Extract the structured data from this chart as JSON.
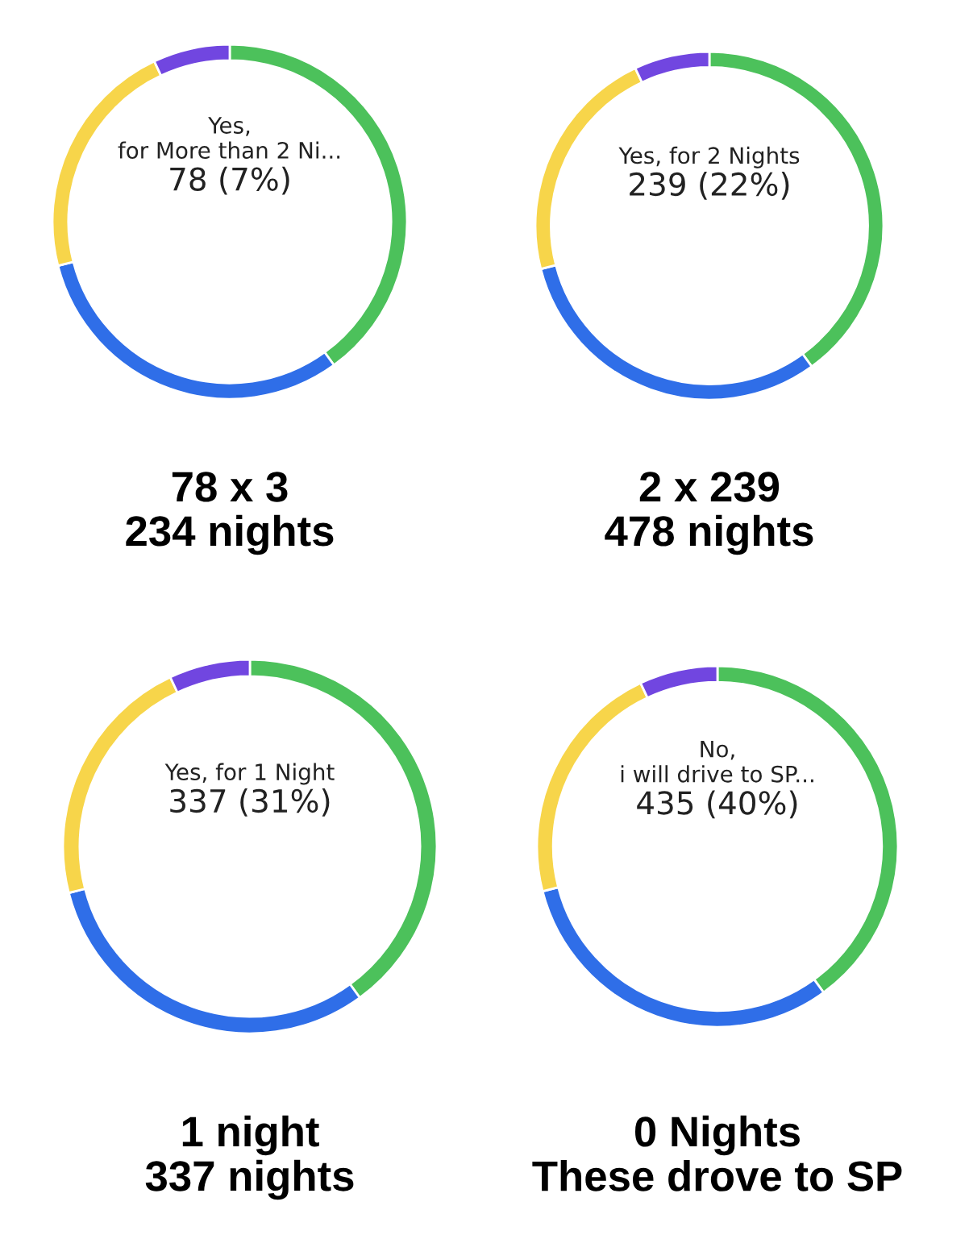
{
  "chart_data": [
    {
      "type": "donut",
      "title": "78 x 3\n234 nights",
      "categories": [
        null,
        null,
        null,
        null
      ],
      "values": [
        40,
        31,
        22,
        7
      ],
      "colors": [
        "#4cc15b",
        "#2f6ee8",
        "#f7d54a",
        "#7146e0"
      ],
      "annotations": [
        "Yes,\nfor More than 2 Ni...",
        "78 (7%)"
      ]
    },
    {
      "type": "donut",
      "title": "2 x 239\n478 nights",
      "categories": [
        null,
        null,
        null,
        null
      ],
      "values": [
        40,
        31,
        22,
        7
      ],
      "colors": [
        "#4cc15b",
        "#2f6ee8",
        "#f7d54a",
        "#7146e0"
      ],
      "annotations": [
        "Yes, for 2 Nights",
        "239 (22%)"
      ]
    },
    {
      "type": "donut",
      "title": "1 night\n337 nights",
      "categories": [
        null,
        null,
        null,
        null
      ],
      "values": [
        40,
        31,
        22,
        7
      ],
      "colors": [
        "#4cc15b",
        "#2f6ee8",
        "#f7d54a",
        "#7146e0"
      ],
      "annotations": [
        "Yes, for 1 Night",
        "337 (31%)"
      ]
    },
    {
      "type": "donut",
      "title": "0 Nights\nThese drove to SP",
      "categories": [
        null,
        null,
        null,
        null
      ],
      "values": [
        40,
        31,
        22,
        7
      ],
      "colors": [
        "#4cc15b",
        "#2f6ee8",
        "#f7d54a",
        "#7146e0"
      ],
      "annotations": [
        "No,\ni will drive to SP...",
        "435 (40%)"
      ]
    }
  ]
}
